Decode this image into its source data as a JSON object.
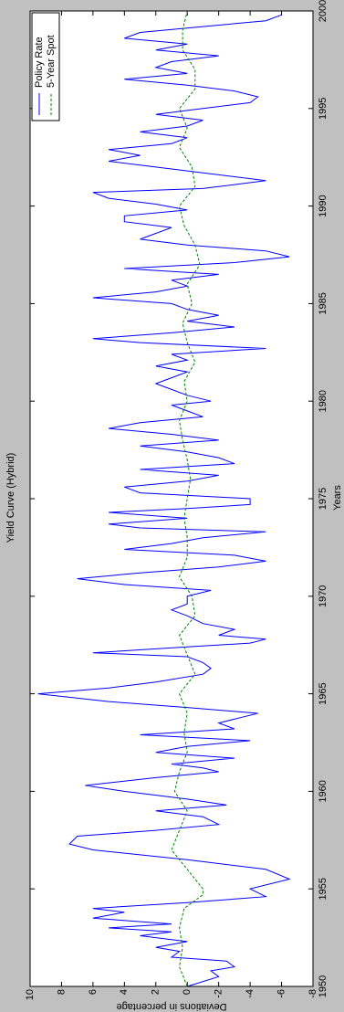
{
  "chart_data": {
    "type": "line",
    "title": "Yield Curve (Hybrid)",
    "x_label": "Years",
    "y_label": "Deviations in percentage",
    "xlim": [
      1950,
      2000
    ],
    "xticks": [
      1950,
      1955,
      1960,
      1965,
      1970,
      1975,
      1980,
      1985,
      1990,
      1995,
      2000
    ],
    "ylim": [
      -8,
      10
    ],
    "yticks": [
      -8,
      -6,
      -4,
      -2,
      0,
      2,
      4,
      6,
      8,
      10
    ],
    "legend": "upper right",
    "rotation": -90,
    "series": [
      {
        "name": "Policy Rate",
        "color": "#0000ff",
        "style": "solid",
        "x": [
          1950.0,
          1950.5,
          1950.8,
          1951.0,
          1951.3,
          1951.5,
          1951.8,
          1952.0,
          1952.3,
          1952.6,
          1952.8,
          1953.0,
          1953.2,
          1953.5,
          1953.8,
          1954.0,
          1954.3,
          1954.6,
          1955.0,
          1955.5,
          1956.0,
          1956.5,
          1957.0,
          1957.3,
          1957.7,
          1958.0,
          1958.3,
          1958.7,
          1959.0,
          1959.3,
          1959.6,
          1960.0,
          1960.3,
          1960.7,
          1961.0,
          1961.2,
          1961.4,
          1961.7,
          1962.0,
          1962.3,
          1962.6,
          1962.9,
          1963.2,
          1963.5,
          1963.8,
          1964.0,
          1964.3,
          1964.6,
          1965.0,
          1965.3,
          1965.6,
          1966.0,
          1966.3,
          1966.6,
          1966.9,
          1967.1,
          1967.4,
          1967.6,
          1967.8,
          1968.0,
          1968.3,
          1968.6,
          1969.0,
          1969.3,
          1969.6,
          1970.0,
          1970.3,
          1970.6,
          1970.9,
          1971.2,
          1971.5,
          1971.8,
          1972.1,
          1972.4,
          1972.7,
          1973.0,
          1973.3,
          1973.5,
          1973.7,
          1974.0,
          1974.3,
          1974.5,
          1974.7,
          1975.0,
          1975.3,
          1975.6,
          1975.9,
          1976.2,
          1976.5,
          1976.8,
          1977.1,
          1977.4,
          1977.7,
          1978.0,
          1978.3,
          1978.6,
          1978.9,
          1979.2,
          1979.5,
          1979.8,
          1980.0,
          1980.3,
          1980.6,
          1980.9,
          1981.2,
          1981.5,
          1981.8,
          1982.1,
          1982.4,
          1982.7,
          1983.0,
          1983.2,
          1983.5,
          1983.8,
          1984.1,
          1984.4,
          1984.7,
          1985.0,
          1985.3,
          1985.6,
          1985.9,
          1986.2,
          1986.5,
          1986.8,
          1987.1,
          1987.4,
          1987.7,
          1988.0,
          1988.3,
          1988.6,
          1988.9,
          1989.2,
          1989.5,
          1989.8,
          1990.1,
          1990.4,
          1990.7,
          1990.9,
          1991.3,
          1991.6,
          1992.0,
          1992.3,
          1992.6,
          1992.9,
          1993.2,
          1993.5,
          1993.8,
          1994.1,
          1994.4,
          1994.7,
          1995.0,
          1995.3,
          1995.6,
          1995.9,
          1996.2,
          1996.5,
          1996.8,
          1997.1,
          1997.4,
          1997.7,
          1998.0,
          1998.3,
          1998.6,
          1998.9,
          1999.2,
          1999.5,
          1999.8
        ],
        "values": [
          0,
          -2,
          -1.5,
          -3,
          -2.5,
          1,
          0.5,
          2,
          0,
          3,
          1,
          5,
          1,
          6,
          4,
          6,
          0,
          -5,
          -4,
          -6.5,
          -5,
          0,
          6,
          7.5,
          7,
          2,
          -2,
          -1,
          2,
          -2.5,
          0,
          4,
          6.5,
          2,
          -2,
          -1,
          1,
          -3,
          2,
          0,
          -4,
          3,
          -3,
          -2,
          -3.5,
          -4.5,
          0,
          5,
          9.5,
          5,
          2,
          -1,
          -1.5,
          -1,
          0,
          6,
          0,
          -4,
          -5,
          -2,
          -3,
          -1,
          0,
          1,
          0,
          0,
          -1.5,
          4,
          7,
          3,
          -2,
          -5,
          -3,
          4,
          1,
          -1,
          -5,
          3,
          5,
          0,
          5,
          0,
          -4,
          -4,
          3,
          4,
          0,
          -2,
          3,
          -3,
          -2,
          0,
          3,
          -2,
          1,
          5,
          3,
          -1,
          0,
          1,
          -1.5,
          0,
          1,
          2,
          1,
          0,
          2,
          0,
          1,
          -5,
          3,
          6,
          1,
          -3,
          0,
          -2,
          0,
          1,
          6,
          2,
          0,
          1,
          -2,
          4,
          -3,
          -6.5,
          -5,
          0,
          3,
          2,
          1,
          4,
          4,
          0,
          2,
          5,
          6,
          -1,
          -5,
          -2,
          2,
          5,
          3,
          5,
          1,
          0,
          3,
          0,
          -1,
          2,
          -1,
          -4,
          -4.5,
          -3,
          0,
          4,
          0,
          2,
          1,
          -2,
          2,
          0,
          4,
          3,
          -1,
          -5,
          -6
        ]
      },
      {
        "name": "5-Year Spot",
        "color": "#008000",
        "style": "dashed",
        "x": [
          1950,
          1951,
          1952,
          1953,
          1954,
          1954.7,
          1955,
          1956,
          1957,
          1958,
          1959,
          1960,
          1961,
          1962,
          1963,
          1964,
          1965,
          1966,
          1967,
          1968,
          1969,
          1970,
          1971,
          1972,
          1973,
          1974,
          1975,
          1976,
          1977,
          1978,
          1979,
          1980,
          1981,
          1982,
          1983,
          1984,
          1985,
          1986,
          1987,
          1988,
          1989,
          1990,
          1991,
          1992,
          1993,
          1994,
          1995,
          1996,
          1997,
          1998,
          1999,
          2000
        ],
        "values": [
          0,
          0.5,
          0.3,
          0.5,
          0.2,
          -1,
          -1,
          0,
          1,
          0.5,
          0,
          0.8,
          0.5,
          0,
          0.2,
          0,
          0.5,
          -0.5,
          0,
          0.5,
          -0.5,
          -0.3,
          0.5,
          0,
          0,
          0.2,
          0,
          -0.2,
          0,
          0.3,
          0.5,
          0,
          0.2,
          -0.5,
          0,
          0.3,
          -0.3,
          0,
          -0.8,
          -0.5,
          0.2,
          0.5,
          -0.5,
          -0.3,
          0.5,
          0,
          0.5,
          -0.5,
          -0.5,
          0.3,
          0.3,
          0
        ]
      }
    ]
  }
}
